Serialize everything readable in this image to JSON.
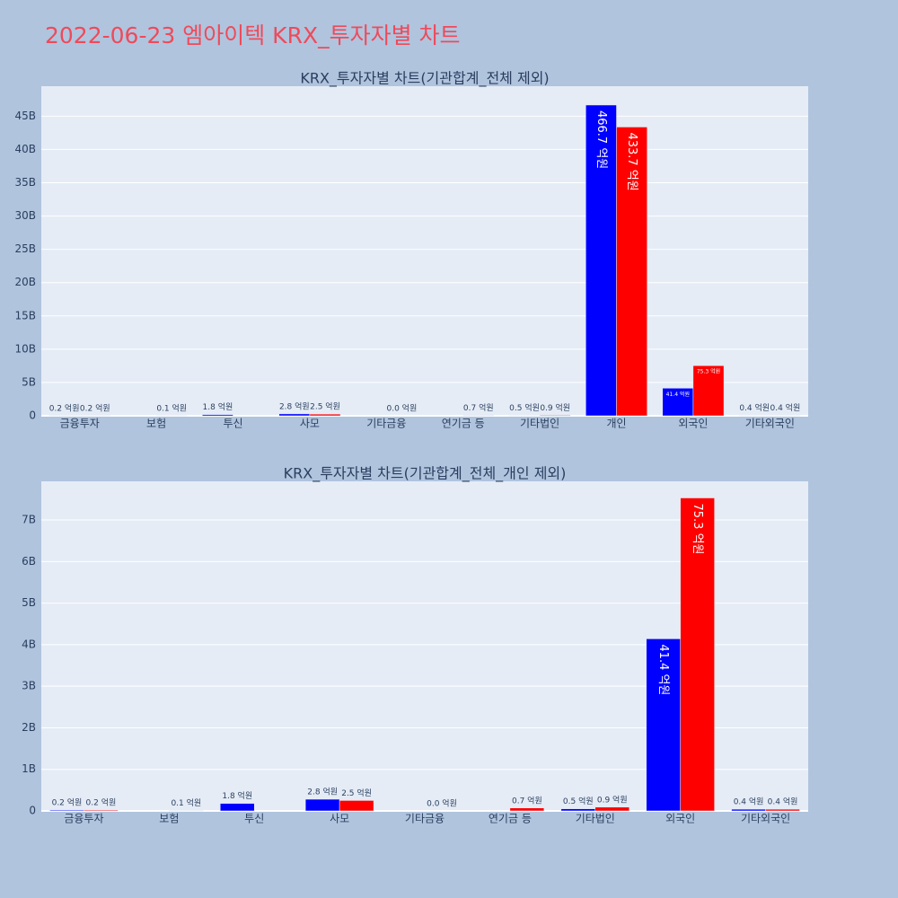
{
  "title": "2022-06-23 엠아이텍 KRX_투자자별 차트",
  "chart_data": [
    {
      "type": "bar",
      "title": "KRX_투자자별 차트(기관합계_전체 제외)",
      "categories": [
        "금융투자",
        "보험",
        "투신",
        "사모",
        "기타금융",
        "연기금 등",
        "기타법인",
        "개인",
        "외국인",
        "기타외국인"
      ],
      "series": [
        {
          "color": "#0000ff",
          "values": [
            20000000,
            null,
            180000000,
            280000000,
            null,
            null,
            50000000,
            46670000000,
            4140000000,
            40000000
          ],
          "value_labels": [
            "0.2 억원",
            null,
            "1.8 억원",
            "2.8 억원",
            null,
            null,
            "0.5 억원",
            "466.7 억원",
            "41.4 억원",
            "0.4 억원"
          ]
        },
        {
          "color": "#ff0000",
          "values": [
            20000000,
            10000000,
            null,
            250000000,
            0,
            70000000,
            90000000,
            43370000000,
            7530000000,
            40000000
          ],
          "value_labels": [
            "0.2 억원",
            "0.1 억원",
            null,
            "2.5 억원",
            "0.0 억원",
            "0.7 억원",
            "0.9 억원",
            "433.7 억원",
            "75.3 억원",
            "0.4 억원"
          ]
        }
      ],
      "ylim": [
        0,
        49500000000
      ],
      "yticks": [
        0,
        {
          "value": 5000000000,
          "label": "5B"
        },
        {
          "value": 10000000000,
          "label": "10B"
        },
        {
          "value": 15000000000,
          "label": "15B"
        },
        {
          "value": 20000000000,
          "label": "20B"
        },
        {
          "value": 25000000000,
          "label": "25B"
        },
        {
          "value": 30000000000,
          "label": "30B"
        },
        {
          "value": 35000000000,
          "label": "35B"
        },
        {
          "value": 40000000000,
          "label": "40B"
        },
        {
          "value": 45000000000,
          "label": "45B"
        }
      ],
      "grid": true
    },
    {
      "type": "bar",
      "title": "KRX_투자자별 차트(기관합계_전체_개인 제외)",
      "categories": [
        "금융투자",
        "보험",
        "투신",
        "사모",
        "기타금융",
        "연기금 등",
        "기타법인",
        "외국인",
        "기타외국인"
      ],
      "series": [
        {
          "color": "#0000ff",
          "values": [
            20000000,
            null,
            180000000,
            280000000,
            null,
            null,
            50000000,
            4140000000,
            40000000
          ],
          "value_labels": [
            "0.2 억원",
            null,
            "1.8 억원",
            "2.8 억원",
            null,
            null,
            "0.5 억원",
            "41.4 억원",
            "0.4 억원"
          ]
        },
        {
          "color": "#ff0000",
          "values": [
            20000000,
            10000000,
            null,
            250000000,
            0,
            70000000,
            90000000,
            7530000000,
            40000000
          ],
          "value_labels": [
            "0.2 억원",
            "0.1 억원",
            null,
            "2.5 억원",
            "0.0 억원",
            "0.7 억원",
            "0.9 억원",
            "75.3 억원",
            "0.4 억원"
          ]
        }
      ],
      "ylim": [
        0,
        7930000000
      ],
      "yticks": [
        0,
        {
          "value": 1000000000,
          "label": "1B"
        },
        {
          "value": 2000000000,
          "label": "2B"
        },
        {
          "value": 3000000000,
          "label": "3B"
        },
        {
          "value": 4000000000,
          "label": "4B"
        },
        {
          "value": 5000000000,
          "label": "5B"
        },
        {
          "value": 6000000000,
          "label": "6B"
        },
        {
          "value": 7000000000,
          "label": "7B"
        }
      ],
      "grid": true
    }
  ]
}
